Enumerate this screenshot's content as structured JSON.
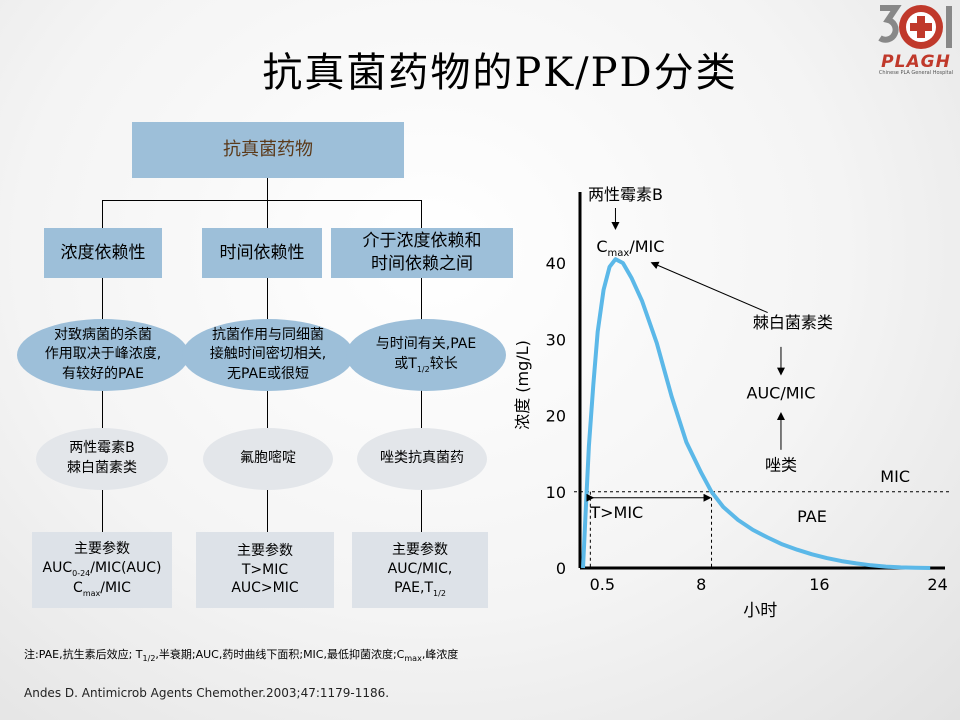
{
  "title": "抗真菌药物的PK/PD分类",
  "logo": {
    "number": "301",
    "text": "PLAGH",
    "subtitle": "Chinese PLA General Hospital"
  },
  "tree": {
    "root": "抗真菌药物",
    "categories": [
      {
        "name": "浓度依赖性",
        "description": [
          "对致病菌的杀菌",
          "作用取决于峰浓度,",
          "有较好的PAE"
        ],
        "drugs": [
          "两性霉素B",
          "棘白菌素类"
        ],
        "params_title": "主要参数",
        "params": [
          "AUC0-24/MIC(AUC)",
          "Cmax/MIC"
        ]
      },
      {
        "name": "时间依赖性",
        "description": [
          "抗菌作用与同细菌",
          "接触时间密切相关,",
          "无PAE或很短"
        ],
        "drugs": [
          "氟胞嘧啶"
        ],
        "params_title": "主要参数",
        "params": [
          "T>MIC",
          "AUC>MIC"
        ]
      },
      {
        "name_lines": [
          "介于浓度依赖和",
          "时间依赖之间"
        ],
        "description": [
          "与时间有关,PAE",
          "或T1/2较长"
        ],
        "drugs": [
          "唑类抗真菌药"
        ],
        "params_title": "主要参数",
        "params": [
          "AUC/MIC,",
          "PAE,T1/2"
        ]
      }
    ]
  },
  "chart_data": {
    "type": "line",
    "xlabel": "小时",
    "ylabel": "浓度 (mg/L)",
    "x_ticks": [
      "0.5",
      "8",
      "16",
      "24"
    ],
    "x_tick_values": [
      0.5,
      8,
      16,
      24
    ],
    "y_ticks": [
      "0",
      "10",
      "20",
      "30",
      "40"
    ],
    "y_tick_values": [
      0,
      10,
      20,
      30,
      40
    ],
    "xlim": [
      -0.2,
      24.5
    ],
    "ylim": [
      0,
      48
    ],
    "mic_value": 10,
    "mic_cross_hours": 8.7,
    "peak": {
      "x": 2.2,
      "y": 40.5
    },
    "series_color": "#5bb8e8",
    "curve": [
      [
        0,
        0
      ],
      [
        0.2,
        8
      ],
      [
        0.4,
        16
      ],
      [
        0.7,
        24
      ],
      [
        1.0,
        31
      ],
      [
        1.4,
        36.5
      ],
      [
        1.8,
        39.5
      ],
      [
        2.2,
        40.5
      ],
      [
        2.7,
        40
      ],
      [
        3.3,
        38
      ],
      [
        4,
        35
      ],
      [
        5,
        29.5
      ],
      [
        6,
        22.5
      ],
      [
        7,
        16.5
      ],
      [
        8,
        12.5
      ],
      [
        8.7,
        10
      ],
      [
        9.5,
        8
      ],
      [
        10.5,
        6.3
      ],
      [
        11.5,
        5
      ],
      [
        12.5,
        4
      ],
      [
        13.5,
        3.1
      ],
      [
        14.5,
        2.4
      ],
      [
        15.5,
        1.8
      ],
      [
        16.5,
        1.3
      ],
      [
        17.5,
        0.9
      ],
      [
        18.5,
        0.6
      ],
      [
        19.5,
        0.35
      ],
      [
        20.5,
        0.18
      ],
      [
        21.5,
        0.08
      ],
      [
        22.5,
        0.03
      ],
      [
        23.5,
        0
      ]
    ],
    "annotations": {
      "amb_label": "两性霉素B",
      "cmax_label": "Cmax/MIC",
      "echino_label": "棘白菌素类",
      "auc_label": "AUC/MIC",
      "azole_label": "唑类",
      "mic_label": "MIC",
      "t_mic_label": "T>MIC",
      "pae_label": "PAE"
    }
  },
  "footer": {
    "note": "注:PAE,抗生素后效应; T1/2,半衰期;AUC,药时曲线下面积;MIC,最低抑菌浓度;Cmax,峰浓度",
    "reference": "Andes D. Antimicrob Agents Chemother.2003;47:1179-1186."
  }
}
